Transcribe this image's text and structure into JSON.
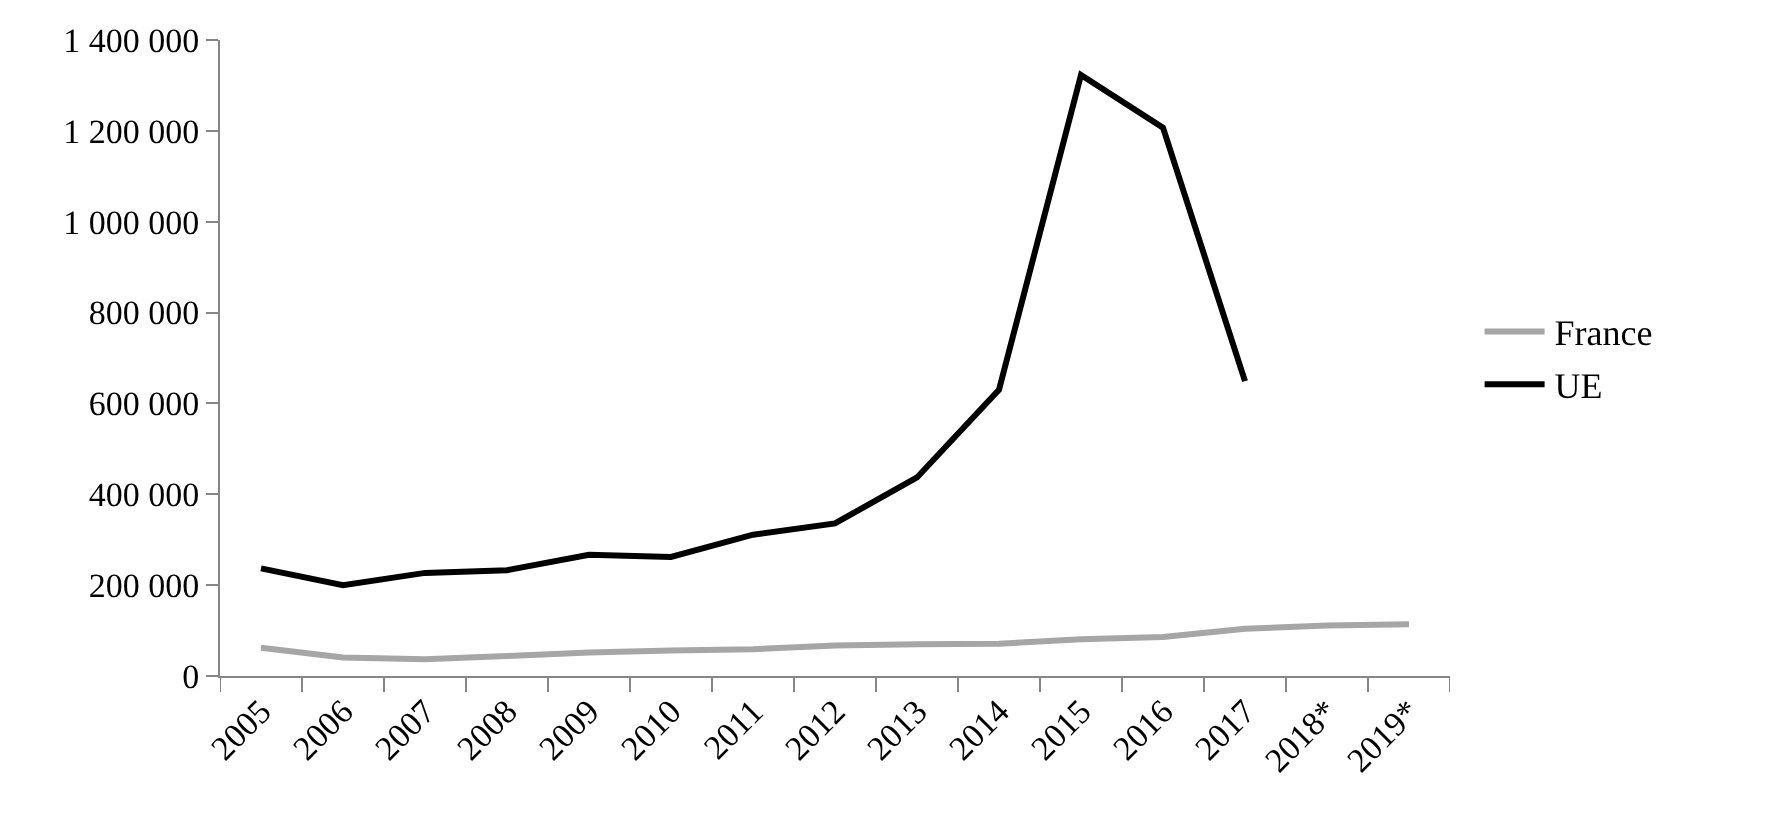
{
  "chart_data": {
    "type": "line",
    "categories": [
      "2005",
      "2006",
      "2007",
      "2008",
      "2009",
      "2010",
      "2011",
      "2012",
      "2013",
      "2014",
      "2015",
      "2016",
      "2017",
      "2018*",
      "2019*"
    ],
    "series": [
      {
        "name": "France",
        "color": "#a6a6a6",
        "values": [
          62000,
          41000,
          37000,
          44000,
          52000,
          56000,
          59000,
          67000,
          70000,
          71000,
          81000,
          86000,
          104000,
          111000,
          114000
        ]
      },
      {
        "name": "UE",
        "color": "#000000",
        "values": [
          237000,
          200000,
          227000,
          233000,
          267000,
          262000,
          311000,
          336000,
          437000,
          630000,
          1323000,
          1207000,
          649000,
          null,
          null
        ]
      }
    ],
    "ylim": [
      0,
      1400000
    ],
    "yticks": [
      {
        "value": 0,
        "label": "0"
      },
      {
        "value": 200000,
        "label": "200 000"
      },
      {
        "value": 400000,
        "label": "400 000"
      },
      {
        "value": 600000,
        "label": "600 000"
      },
      {
        "value": 800000,
        "label": "800 000"
      },
      {
        "value": 1000000,
        "label": "1 000 000"
      },
      {
        "value": 1200000,
        "label": "1 200 000"
      },
      {
        "value": 1400000,
        "label": "1 400 000"
      }
    ],
    "grid": false,
    "legend": "right",
    "marker": "none",
    "line_style": "solid"
  }
}
